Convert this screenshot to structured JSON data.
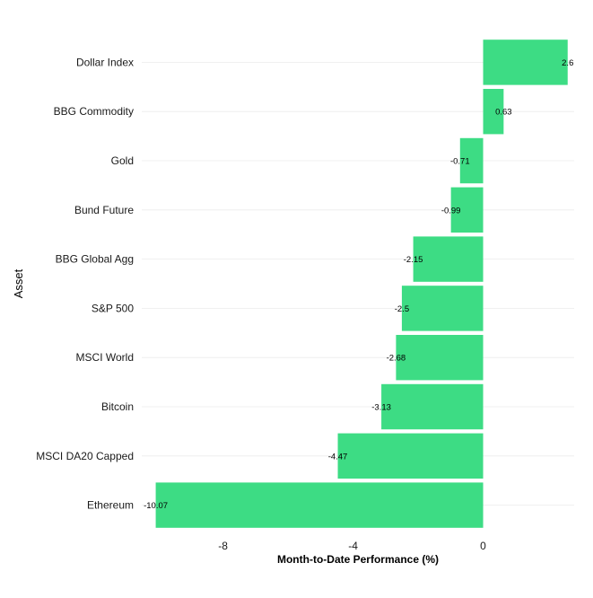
{
  "chart_data": {
    "type": "bar",
    "orientation": "horizontal",
    "categories": [
      "Dollar Index",
      "BBG Commodity",
      "Gold",
      "Bund Future",
      "BBG Global Agg",
      "S&P 500",
      "MSCI World",
      "Bitcoin",
      "MSCI DA20 Capped",
      "Ethereum"
    ],
    "values": [
      2.6,
      0.63,
      -0.71,
      -0.99,
      -2.15,
      -2.5,
      -2.68,
      -3.13,
      -4.47,
      -10.07
    ],
    "value_labels": [
      "2.6",
      "0.63",
      "-0.71",
      "-0.99",
      "-2.15",
      "-2.5",
      "-2.68",
      "-3.13",
      "-4.47",
      "-10.07"
    ],
    "xlabel": "Month-to-Date Performance (%)",
    "ylabel": "Asset",
    "xlim": [
      -10.5,
      2.8
    ],
    "xticks": [
      -8,
      -4,
      0
    ],
    "xtick_labels": [
      "-8",
      "-4",
      "0"
    ],
    "grid": "horizontal major lines only",
    "bar_color": "#3ddc84"
  }
}
